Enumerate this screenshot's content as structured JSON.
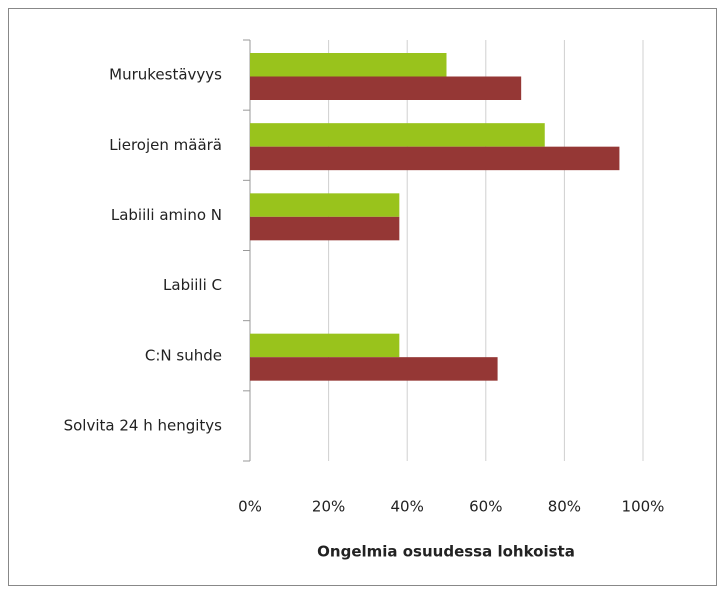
{
  "chart_data": {
    "type": "bar",
    "orientation": "horizontal",
    "x_label": "Ongelmia osuudessa lohkoista",
    "categories": [
      "Murukestävyys",
      "Lierojen määrä",
      "Labiili amino N",
      "Labiili C",
      "C:N suhde",
      "Solvita 24 h hengitys"
    ],
    "series": [
      {
        "color": "#99c31c",
        "values": [
          50,
          75,
          38,
          0,
          38,
          0
        ]
      },
      {
        "color": "#953735",
        "values": [
          69,
          94,
          38,
          0,
          63,
          0
        ]
      }
    ],
    "xlim": [
      0,
      100
    ],
    "xticks": [
      {
        "value": 0,
        "label": "0%"
      },
      {
        "value": 20,
        "label": "20%"
      },
      {
        "value": 40,
        "label": "40%"
      },
      {
        "value": 60,
        "label": "60%"
      },
      {
        "value": 80,
        "label": "80%"
      },
      {
        "value": 100,
        "label": "100%"
      }
    ],
    "grid": true
  }
}
